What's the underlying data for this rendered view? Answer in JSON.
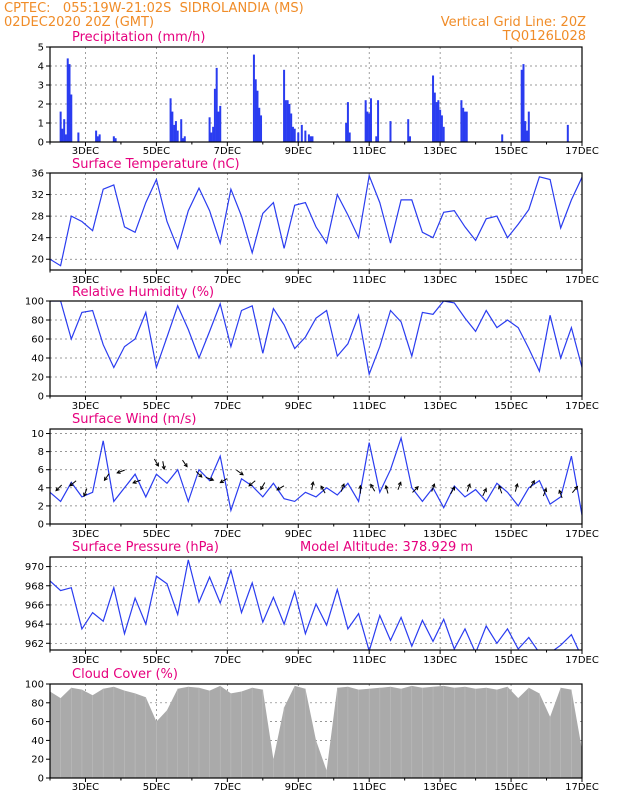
{
  "header": {
    "line1_left": "CPTEC:   055:19W-21:02S  SIDROLANDIA (MS)",
    "line2_left": "02DEC2020 20Z (GMT)",
    "line1_right": "Vertical Grid Line: 20Z",
    "line2_right": "TQ0126L028"
  },
  "colors": {
    "header": "#f08c28",
    "panel_title": "#e6007e",
    "series_line": "#2a3cf0",
    "wind_arrow": "#000000",
    "cloud_fill": "#aaaaaa",
    "frame": "#000000"
  },
  "x_axis": {
    "tick_labels": [
      "3DEC",
      "5DEC",
      "7DEC",
      "9DEC",
      "11DEC",
      "13DEC",
      "15DEC",
      "17DEC"
    ],
    "tick_days": [
      3,
      5,
      7,
      9,
      11,
      13,
      15,
      17
    ],
    "range_days": [
      2.0,
      17.0
    ]
  },
  "chart_data": [
    {
      "id": "precip",
      "type": "bar",
      "title": "Precipitation (mm/h)",
      "ylim": [
        0,
        5
      ],
      "yticks": [
        0,
        1,
        2,
        3,
        4,
        5
      ],
      "grid": true,
      "x_day": [
        2.3,
        2.35,
        2.4,
        2.45,
        2.5,
        2.55,
        2.6,
        2.8,
        3.3,
        3.35,
        3.4,
        3.8,
        3.85,
        5.4,
        5.45,
        5.5,
        5.55,
        5.6,
        5.7,
        5.75,
        5.8,
        6.5,
        6.55,
        6.6,
        6.65,
        6.7,
        6.75,
        6.8,
        7.75,
        7.8,
        7.85,
        7.9,
        7.95,
        8.6,
        8.65,
        8.7,
        8.75,
        8.8,
        8.85,
        8.9,
        9.0,
        9.1,
        9.2,
        9.3,
        9.35,
        9.4,
        10.35,
        10.4,
        10.45,
        10.9,
        10.95,
        11.0,
        11.05,
        11.2,
        11.25,
        11.6,
        12.1,
        12.15,
        12.8,
        12.85,
        12.9,
        12.95,
        13.0,
        13.05,
        13.1,
        13.6,
        13.65,
        13.7,
        13.75,
        14.75,
        15.3,
        15.35,
        15.4,
        15.45,
        15.5,
        16.6
      ],
      "values": [
        1.6,
        0.7,
        1.2,
        0.4,
        4.4,
        4.1,
        2.5,
        0.5,
        0.6,
        0.3,
        0.4,
        0.3,
        0.2,
        2.3,
        1.6,
        0.9,
        1.1,
        0.6,
        1.2,
        0.2,
        0.3,
        1.3,
        0.5,
        0.8,
        2.8,
        3.9,
        1.6,
        1.9,
        4.6,
        3.3,
        2.7,
        1.8,
        1.4,
        3.8,
        2.2,
        2.2,
        2.0,
        1.5,
        0.8,
        0.7,
        0.5,
        0.9,
        0.6,
        0.4,
        0.3,
        0.3,
        1.0,
        2.1,
        0.5,
        2.2,
        1.6,
        1.5,
        2.3,
        0.3,
        2.2,
        1.1,
        1.2,
        0.3,
        3.5,
        2.6,
        2.1,
        2.2,
        1.7,
        1.4,
        0.8,
        2.2,
        1.8,
        1.6,
        1.6,
        0.4,
        3.8,
        4.1,
        1.1,
        0.6,
        1.6,
        0.9
      ]
    },
    {
      "id": "temp",
      "type": "line",
      "title": "Surface Temperature (nC)",
      "ylim": [
        18,
        36
      ],
      "yticks": [
        20,
        24,
        28,
        32,
        36
      ],
      "grid": true,
      "x_day": [
        2.0,
        2.3,
        2.6,
        2.9,
        3.2,
        3.5,
        3.8,
        4.1,
        4.4,
        4.7,
        5.0,
        5.3,
        5.6,
        5.9,
        6.2,
        6.5,
        6.8,
        7.1,
        7.4,
        7.7,
        8.0,
        8.3,
        8.6,
        8.9,
        9.2,
        9.5,
        9.8,
        10.1,
        10.4,
        10.7,
        11.0,
        11.3,
        11.6,
        11.9,
        12.2,
        12.5,
        12.8,
        13.1,
        13.4,
        13.7,
        14.0,
        14.3,
        14.6,
        14.9,
        15.2,
        15.5,
        15.8,
        16.1,
        16.4,
        16.7,
        17.0
      ],
      "values": [
        20.0,
        18.8,
        28.0,
        27.0,
        25.3,
        33.0,
        33.8,
        26.0,
        25.0,
        30.5,
        34.8,
        27.0,
        22.0,
        29.0,
        33.2,
        29.0,
        23.0,
        33.0,
        28.0,
        21.2,
        28.5,
        30.5,
        22.0,
        30.0,
        30.5,
        26.0,
        23.0,
        32.0,
        28.2,
        24.0,
        35.5,
        30.5,
        23.0,
        31.0,
        31.0,
        25.0,
        24.0,
        28.7,
        29.0,
        26.0,
        23.5,
        27.5,
        28.0,
        24.0,
        26.5,
        29.2,
        35.3,
        34.8,
        25.8,
        31.0,
        35.2
      ]
    },
    {
      "id": "rh",
      "type": "line",
      "title": "Relative Humidity (%)",
      "ylim": [
        0,
        100
      ],
      "yticks": [
        0,
        20,
        40,
        60,
        80,
        100
      ],
      "grid": true,
      "x_day": [
        2.0,
        2.3,
        2.6,
        2.9,
        3.2,
        3.5,
        3.8,
        4.1,
        4.4,
        4.7,
        5.0,
        5.3,
        5.6,
        5.9,
        6.2,
        6.5,
        6.8,
        7.1,
        7.4,
        7.7,
        8.0,
        8.3,
        8.6,
        8.9,
        9.2,
        9.5,
        9.8,
        10.1,
        10.4,
        10.7,
        11.0,
        11.3,
        11.6,
        11.9,
        12.2,
        12.5,
        12.8,
        13.1,
        13.4,
        13.7,
        14.0,
        14.3,
        14.6,
        14.9,
        15.2,
        15.5,
        15.8,
        16.1,
        16.4,
        16.7,
        17.0
      ],
      "values": [
        100,
        100,
        60,
        88,
        90,
        54,
        30,
        52,
        60,
        88,
        30,
        62,
        95,
        70,
        40,
        68,
        97,
        52,
        90,
        95,
        45,
        92,
        75,
        50,
        62,
        82,
        90,
        42,
        55,
        85,
        23,
        52,
        90,
        78,
        42,
        88,
        86,
        100,
        98,
        82,
        68,
        90,
        72,
        80,
        72,
        50,
        26,
        85,
        40,
        72,
        30
      ]
    },
    {
      "id": "wind",
      "type": "line",
      "title": "Surface Wind (m/s)",
      "ylim": [
        0,
        10.5
      ],
      "yticks": [
        0,
        2,
        4,
        6,
        8,
        10
      ],
      "grid": true,
      "x_day": [
        2.0,
        2.3,
        2.6,
        2.9,
        3.2,
        3.5,
        3.8,
        4.1,
        4.4,
        4.7,
        5.0,
        5.3,
        5.6,
        5.9,
        6.2,
        6.5,
        6.8,
        7.1,
        7.4,
        7.7,
        8.0,
        8.3,
        8.6,
        8.9,
        9.2,
        9.5,
        9.8,
        10.1,
        10.4,
        10.7,
        11.0,
        11.3,
        11.6,
        11.9,
        12.2,
        12.5,
        12.8,
        13.1,
        13.4,
        13.7,
        14.0,
        14.3,
        14.6,
        14.9,
        15.2,
        15.5,
        15.8,
        16.1,
        16.4,
        16.7,
        17.0
      ],
      "values": [
        3.5,
        2.5,
        4.6,
        3.0,
        3.5,
        9.2,
        2.5,
        4.0,
        5.5,
        3.0,
        5.5,
        4.5,
        6.0,
        2.5,
        6.0,
        4.8,
        7.5,
        1.5,
        5.0,
        4.2,
        3.0,
        4.5,
        2.8,
        2.5,
        3.5,
        3.0,
        4.0,
        3.2,
        4.5,
        2.5,
        9.0,
        3.5,
        6.0,
        9.5,
        4.0,
        2.5,
        4.0,
        1.8,
        4.2,
        3.0,
        3.8,
        2.5,
        4.5,
        3.5,
        2.0,
        4.0,
        4.8,
        2.2,
        3.0,
        7.5,
        1.0
      ],
      "arrows": [
        {
          "day": 2.25,
          "speed": 4.0,
          "dir_deg": 225
        },
        {
          "day": 2.65,
          "speed": 4.5,
          "dir_deg": 230
        },
        {
          "day": 3.0,
          "speed": 3.5,
          "dir_deg": 200
        },
        {
          "day": 3.6,
          "speed": 5.2,
          "dir_deg": 215
        },
        {
          "day": 4.0,
          "speed": 5.8,
          "dir_deg": 250
        },
        {
          "day": 4.45,
          "speed": 4.7,
          "dir_deg": 250
        },
        {
          "day": 5.0,
          "speed": 6.8,
          "dir_deg": 150
        },
        {
          "day": 5.2,
          "speed": 6.5,
          "dir_deg": 170
        },
        {
          "day": 5.8,
          "speed": 6.7,
          "dir_deg": 145
        },
        {
          "day": 6.2,
          "speed": 5.5,
          "dir_deg": 135
        },
        {
          "day": 6.5,
          "speed": 5.0,
          "dir_deg": 110
        },
        {
          "day": 6.9,
          "speed": 4.8,
          "dir_deg": 240
        },
        {
          "day": 7.35,
          "speed": 5.7,
          "dir_deg": 125
        },
        {
          "day": 7.7,
          "speed": 4.5,
          "dir_deg": 230
        },
        {
          "day": 8.0,
          "speed": 4.2,
          "dir_deg": 210
        },
        {
          "day": 8.5,
          "speed": 4.0,
          "dir_deg": 240
        },
        {
          "day": 9.4,
          "speed": 4.2,
          "dir_deg": 10
        },
        {
          "day": 9.7,
          "speed": 3.8,
          "dir_deg": 330
        },
        {
          "day": 10.25,
          "speed": 4.0,
          "dir_deg": 20
        },
        {
          "day": 10.75,
          "speed": 3.8,
          "dir_deg": 0
        },
        {
          "day": 11.1,
          "speed": 4.0,
          "dir_deg": 330
        },
        {
          "day": 11.5,
          "speed": 3.8,
          "dir_deg": 345
        },
        {
          "day": 11.85,
          "speed": 4.2,
          "dir_deg": 20
        },
        {
          "day": 12.3,
          "speed": 3.8,
          "dir_deg": 45
        },
        {
          "day": 12.8,
          "speed": 4.0,
          "dir_deg": 20
        },
        {
          "day": 13.35,
          "speed": 3.7,
          "dir_deg": 30
        },
        {
          "day": 13.8,
          "speed": 4.0,
          "dir_deg": 20
        },
        {
          "day": 14.25,
          "speed": 3.5,
          "dir_deg": 25
        },
        {
          "day": 14.7,
          "speed": 3.8,
          "dir_deg": 340
        },
        {
          "day": 15.15,
          "speed": 4.0,
          "dir_deg": 15
        },
        {
          "day": 15.6,
          "speed": 4.4,
          "dir_deg": 30
        },
        {
          "day": 15.95,
          "speed": 3.5,
          "dir_deg": 20
        },
        {
          "day": 16.4,
          "speed": 3.3,
          "dir_deg": 340
        },
        {
          "day": 16.8,
          "speed": 3.8,
          "dir_deg": 40
        }
      ]
    },
    {
      "id": "pres",
      "type": "line",
      "title": "Surface Pressure (hPa)",
      "annotation": "Model Altitude: 378.929 m",
      "ylim": [
        961.3,
        971.0
      ],
      "yticks": [
        962,
        964,
        966,
        968,
        970
      ],
      "grid": true,
      "x_day": [
        2.0,
        2.3,
        2.6,
        2.9,
        3.2,
        3.5,
        3.8,
        4.1,
        4.4,
        4.7,
        5.0,
        5.3,
        5.6,
        5.9,
        6.2,
        6.5,
        6.8,
        7.1,
        7.4,
        7.7,
        8.0,
        8.3,
        8.6,
        8.9,
        9.2,
        9.5,
        9.8,
        10.1,
        10.4,
        10.7,
        11.0,
        11.3,
        11.6,
        11.9,
        12.2,
        12.5,
        12.8,
        13.1,
        13.4,
        13.7,
        14.0,
        14.3,
        14.6,
        14.9,
        15.2,
        15.5,
        15.8,
        16.1,
        16.4,
        16.7,
        17.0
      ],
      "values": [
        968.5,
        967.5,
        967.8,
        963.5,
        965.2,
        964.3,
        967.8,
        963.0,
        966.7,
        964.0,
        969.0,
        968.2,
        965.0,
        970.7,
        966.3,
        968.9,
        966.2,
        969.6,
        965.2,
        968.3,
        964.2,
        966.8,
        964.0,
        967.4,
        963.0,
        966.1,
        963.9,
        967.6,
        963.5,
        965.1,
        961.2,
        964.9,
        962.3,
        964.7,
        961.7,
        964.4,
        962.2,
        964.5,
        961.4,
        963.5,
        961.0,
        963.8,
        962.0,
        963.5,
        961.4,
        962.6,
        961.0,
        961.0,
        961.8,
        962.9,
        960.5
      ]
    },
    {
      "id": "cloud",
      "type": "area",
      "title": "Cloud Cover (%)",
      "ylim": [
        0,
        100
      ],
      "yticks": [
        0,
        20,
        40,
        60,
        80,
        100
      ],
      "grid": true,
      "x_day": [
        2.0,
        2.3,
        2.6,
        2.9,
        3.2,
        3.5,
        3.8,
        4.1,
        4.4,
        4.7,
        5.0,
        5.3,
        5.6,
        5.9,
        6.2,
        6.5,
        6.8,
        7.1,
        7.4,
        7.7,
        8.0,
        8.3,
        8.6,
        8.9,
        9.2,
        9.5,
        9.8,
        10.1,
        10.4,
        10.7,
        11.0,
        11.3,
        11.6,
        11.9,
        12.2,
        12.5,
        12.8,
        13.1,
        13.4,
        13.7,
        14.0,
        14.3,
        14.6,
        14.9,
        15.2,
        15.5,
        15.8,
        16.1,
        16.4,
        16.7,
        17.0
      ],
      "values": [
        92,
        85,
        96,
        94,
        88,
        95,
        97,
        93,
        90,
        86,
        60,
        72,
        95,
        97,
        96,
        93,
        98,
        90,
        92,
        96,
        94,
        20,
        75,
        98,
        95,
        40,
        8,
        96,
        97,
        94,
        95,
        96,
        97,
        95,
        98,
        96,
        97,
        98,
        96,
        97,
        95,
        96,
        94,
        97,
        85,
        96,
        90,
        65,
        96,
        94,
        30
      ]
    }
  ]
}
